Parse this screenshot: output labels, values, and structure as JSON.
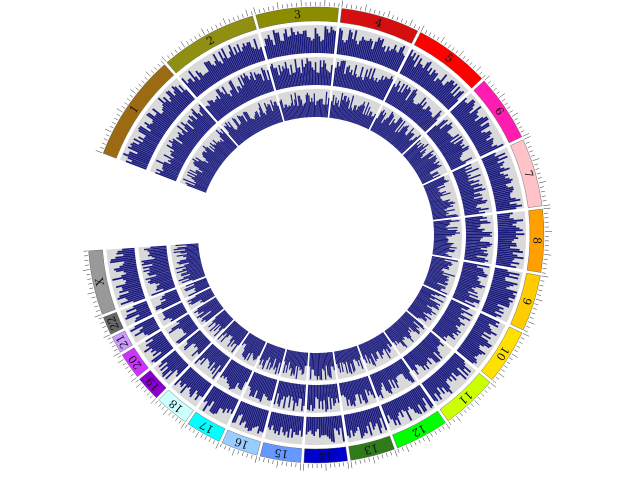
{
  "chart_data": {
    "type": "circular-histogram",
    "segments": [
      {
        "label": "1",
        "color": "#9b6a12",
        "length": 8.2
      },
      {
        "label": "2",
        "color": "#8f8f12",
        "length": 7.4
      },
      {
        "label": "3",
        "color": "#8c8c00",
        "length": 6.3
      },
      {
        "label": "4",
        "color": "#d40f0f",
        "length": 6.0
      },
      {
        "label": "5",
        "color": "#ff0000",
        "length": 5.8
      },
      {
        "label": "6",
        "color": "#ff1cb0",
        "length": 5.1
      },
      {
        "label": "7",
        "color": "#ffc2c8",
        "length": 5.2
      },
      {
        "label": "8",
        "color": "#ffa000",
        "length": 4.8
      },
      {
        "label": "9",
        "color": "#ffcc00",
        "length": 4.3
      },
      {
        "label": "10",
        "color": "#ffe000",
        "length": 4.2
      },
      {
        "label": "11",
        "color": "#ccff00",
        "length": 4.3
      },
      {
        "label": "12",
        "color": "#00ff00",
        "length": 4.1
      },
      {
        "label": "13",
        "color": "#2f7a1a",
        "length": 3.4
      },
      {
        "label": "14",
        "color": "#0000cc",
        "length": 3.3
      },
      {
        "label": "15",
        "color": "#6699ff",
        "length": 3.1
      },
      {
        "label": "16",
        "color": "#99ccff",
        "length": 2.8
      },
      {
        "label": "17",
        "color": "#00ffff",
        "length": 2.7
      },
      {
        "label": "18",
        "color": "#ccffff",
        "length": 2.6
      },
      {
        "label": "19",
        "color": "#8800cc",
        "length": 1.9
      },
      {
        "label": "20",
        "color": "#cc33ff",
        "length": 2.0
      },
      {
        "label": "21",
        "color": "#cc99ff",
        "length": 1.3
      },
      {
        "label": "22",
        "color": "#666666",
        "length": 1.4
      },
      {
        "label": "X",
        "color": "#999999",
        "length": 4.9
      }
    ],
    "bar_color": "#1a1a7e",
    "track_background": "#d9d9d9",
    "tracks": 3
  }
}
